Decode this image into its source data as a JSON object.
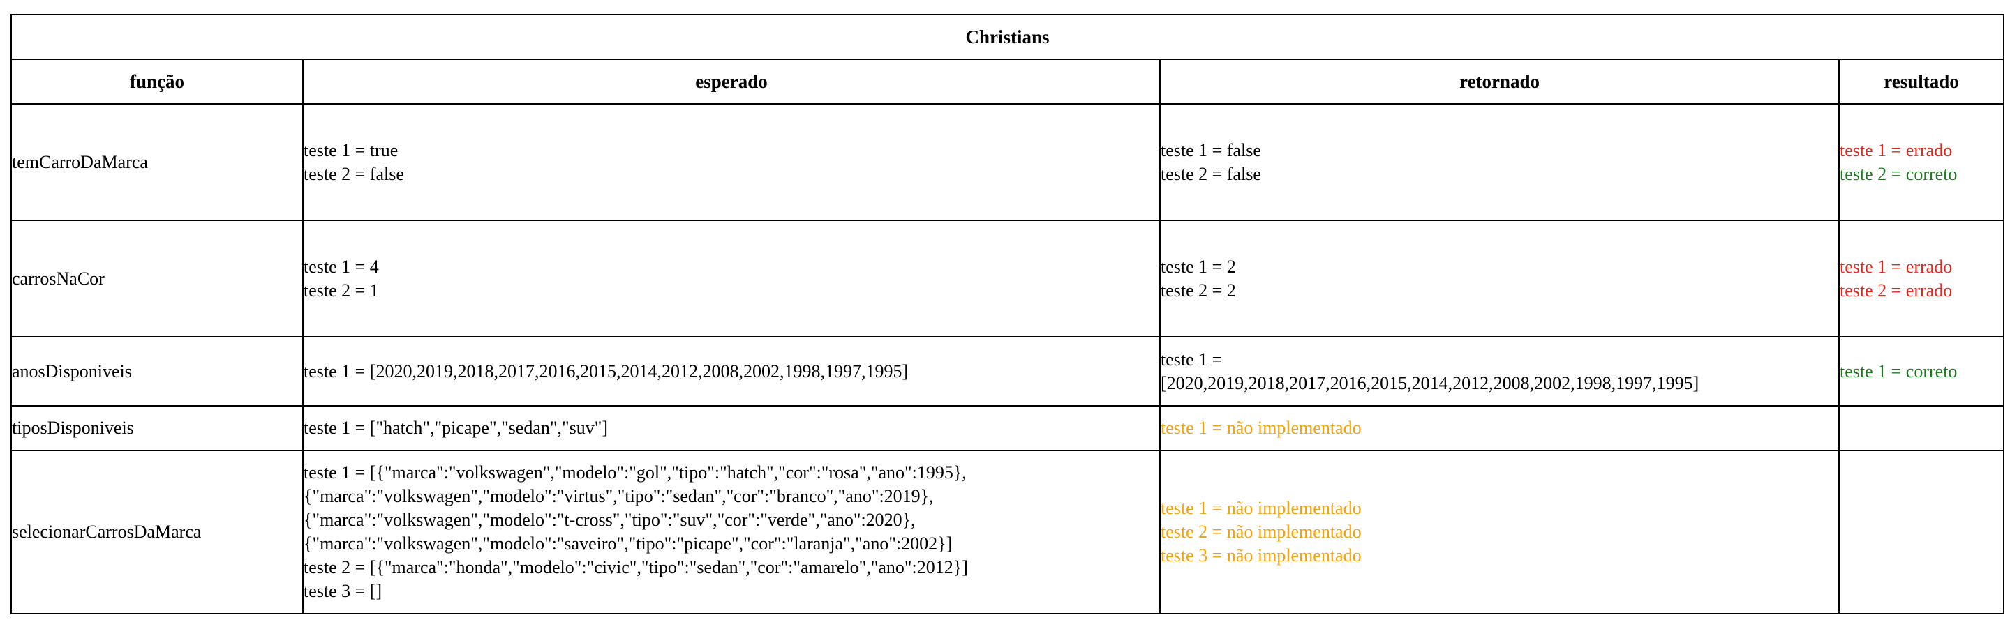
{
  "table": {
    "title": "Christians",
    "headers": [
      "função",
      "esperado",
      "retornado",
      "resultado"
    ],
    "rows": [
      {
        "funcao": "temCarroDaMarca",
        "esperado": [
          "teste 1 = true",
          "teste 2 = false"
        ],
        "retornado": [
          "teste 1 = false",
          "teste 2 = false"
        ],
        "resultado": [
          {
            "text": "teste 1 = errado",
            "status": "errado"
          },
          {
            "text": "teste 2 = correto",
            "status": "correto"
          }
        ]
      },
      {
        "funcao": "carrosNaCor",
        "esperado": [
          "teste 1 = 4",
          "teste 2 = 1"
        ],
        "retornado": [
          "teste 1 = 2",
          "teste 2 = 2"
        ],
        "resultado": [
          {
            "text": "teste 1 = errado",
            "status": "errado"
          },
          {
            "text": "teste 2 = errado",
            "status": "errado"
          }
        ]
      },
      {
        "funcao": "anosDisponiveis",
        "esperado": [
          "teste 1 = [2020,2019,2018,2017,2016,2015,2014,2012,2008,2002,1998,1997,1995]"
        ],
        "retornado": [
          "teste 1 =",
          "[2020,2019,2018,2017,2016,2015,2014,2012,2008,2002,1998,1997,1995]"
        ],
        "resultado": [
          {
            "text": "teste 1 = correto",
            "status": "correto"
          }
        ]
      },
      {
        "funcao": "tiposDisponiveis",
        "esperado": [
          "teste 1 = [\"hatch\",\"picape\",\"sedan\",\"suv\"]"
        ],
        "retornado": [
          "teste 1 = não implementado"
        ],
        "retornado_status": "nao-implementado",
        "resultado": []
      },
      {
        "funcao": "selecionarCarrosDaMarca",
        "esperado": [
          "teste 1 = [{\"marca\":\"volkswagen\",\"modelo\":\"gol\",\"tipo\":\"hatch\",\"cor\":\"rosa\",\"ano\":1995},",
          "{\"marca\":\"volkswagen\",\"modelo\":\"virtus\",\"tipo\":\"sedan\",\"cor\":\"branco\",\"ano\":2019},",
          "{\"marca\":\"volkswagen\",\"modelo\":\"t-cross\",\"tipo\":\"suv\",\"cor\":\"verde\",\"ano\":2020},",
          "{\"marca\":\"volkswagen\",\"modelo\":\"saveiro\",\"tipo\":\"picape\",\"cor\":\"laranja\",\"ano\":2002}]",
          "teste 2 = [{\"marca\":\"honda\",\"modelo\":\"civic\",\"tipo\":\"sedan\",\"cor\":\"amarelo\",\"ano\":2012}]",
          "teste 3 = []"
        ],
        "retornado": [
          "teste 1 = não implementado",
          "teste 2 = não implementado",
          "teste 3 = não implementado"
        ],
        "retornado_status": "nao-implementado",
        "resultado": []
      }
    ]
  },
  "colors": {
    "errado": "#e8251c",
    "correto": "#1e7a1e",
    "nao_implementado": "#f5a10b"
  }
}
